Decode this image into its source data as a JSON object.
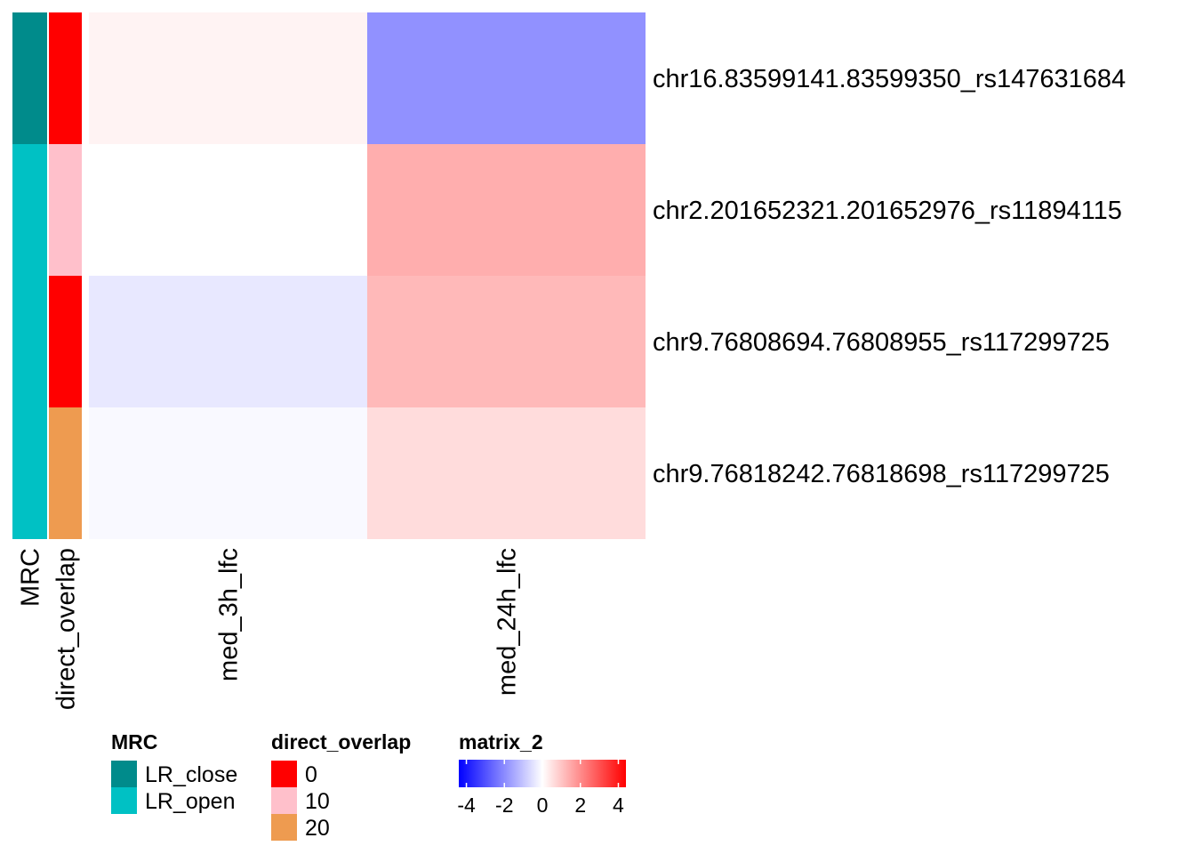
{
  "chart_data": {
    "type": "heatmap",
    "rows": [
      "chr16.83599141.83599350_rs147631684",
      "chr2.201652321.201652976_rs11894115",
      "chr9.76808694.76808955_rs117299725",
      "chr9.76818242.76818698_rs117299725"
    ],
    "columns": [
      "med_3h_lfc",
      "med_24h_lfc"
    ],
    "values": [
      [
        0.2,
        -1.9
      ],
      [
        0.0,
        1.4
      ],
      [
        -0.4,
        1.2
      ],
      [
        -0.1,
        0.6
      ]
    ],
    "annotations": [
      {
        "name": "MRC",
        "values": [
          "LR_close",
          "LR_open",
          "LR_open",
          "LR_open"
        ]
      },
      {
        "name": "direct_overlap",
        "values": [
          0,
          10,
          0,
          20
        ]
      }
    ],
    "legends": {
      "MRC": {
        "title": "MRC",
        "entries": [
          {
            "label": "LR_close",
            "color": "#008b8b"
          },
          {
            "label": "LR_open",
            "color": "#00c1c4"
          }
        ]
      },
      "direct_overlap": {
        "title": "direct_overlap",
        "entries": [
          {
            "label": "0",
            "color": "#ff0000"
          },
          {
            "label": "10",
            "color": "#ffc0cb"
          },
          {
            "label": "20",
            "color": "#ee9b50"
          }
        ]
      },
      "matrix_2": {
        "title": "matrix_2",
        "range": [
          -4.4,
          4.4
        ],
        "ticks": [
          -4,
          -2,
          0,
          2,
          4
        ],
        "tick_labels": [
          "-4",
          "-2",
          "0",
          "2",
          "4"
        ],
        "colors": {
          "low": "#0000ff",
          "mid": "#ffffff",
          "high": "#ff0000"
        }
      }
    },
    "legend_placement": "bottom"
  }
}
